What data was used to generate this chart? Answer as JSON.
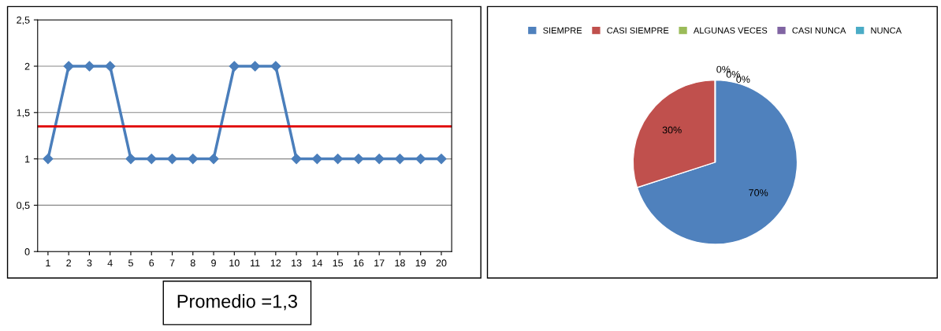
{
  "chart_data": [
    {
      "type": "line",
      "categories": [
        "1",
        "2",
        "3",
        "4",
        "5",
        "6",
        "7",
        "8",
        "9",
        "10",
        "11",
        "12",
        "13",
        "14",
        "15",
        "16",
        "17",
        "18",
        "19",
        "20"
      ],
      "series": [
        {
          "color": "#4a7ebb",
          "values": [
            1,
            2,
            2,
            2,
            1,
            1,
            1,
            1,
            1,
            2,
            2,
            2,
            1,
            1,
            1,
            1,
            1,
            1,
            1,
            1
          ]
        }
      ],
      "ylim": [
        0,
        2.5
      ],
      "yticks": [
        0,
        {
          "value": 0.5,
          "label": "0,5"
        },
        1,
        {
          "value": 1.5,
          "label": "1,5"
        },
        2,
        {
          "value": 2.5,
          "label": "2,5"
        }
      ],
      "grid": "y",
      "marker": "diamond",
      "line_style": "solid",
      "ref_lines": [
        {
          "axis": "y",
          "value": 1.35,
          "color": "#e00000"
        }
      ],
      "annotations": [
        "Promedio =1,3"
      ]
    },
    {
      "type": "pie",
      "categories": [
        "SIEMPRE",
        "CASI SIEMPRE",
        "ALGUNAS VECES",
        "CASI NUNCA",
        "NUNCA"
      ],
      "values": [
        70,
        30,
        0,
        0,
        0
      ],
      "colors": [
        "#4f81bd",
        "#c0504d",
        "#9bbb59",
        "#8064a2",
        "#4bacc6"
      ],
      "value_labels": [
        "70%",
        "30%",
        "0%",
        "0%",
        "0%"
      ],
      "legend": "top"
    }
  ]
}
